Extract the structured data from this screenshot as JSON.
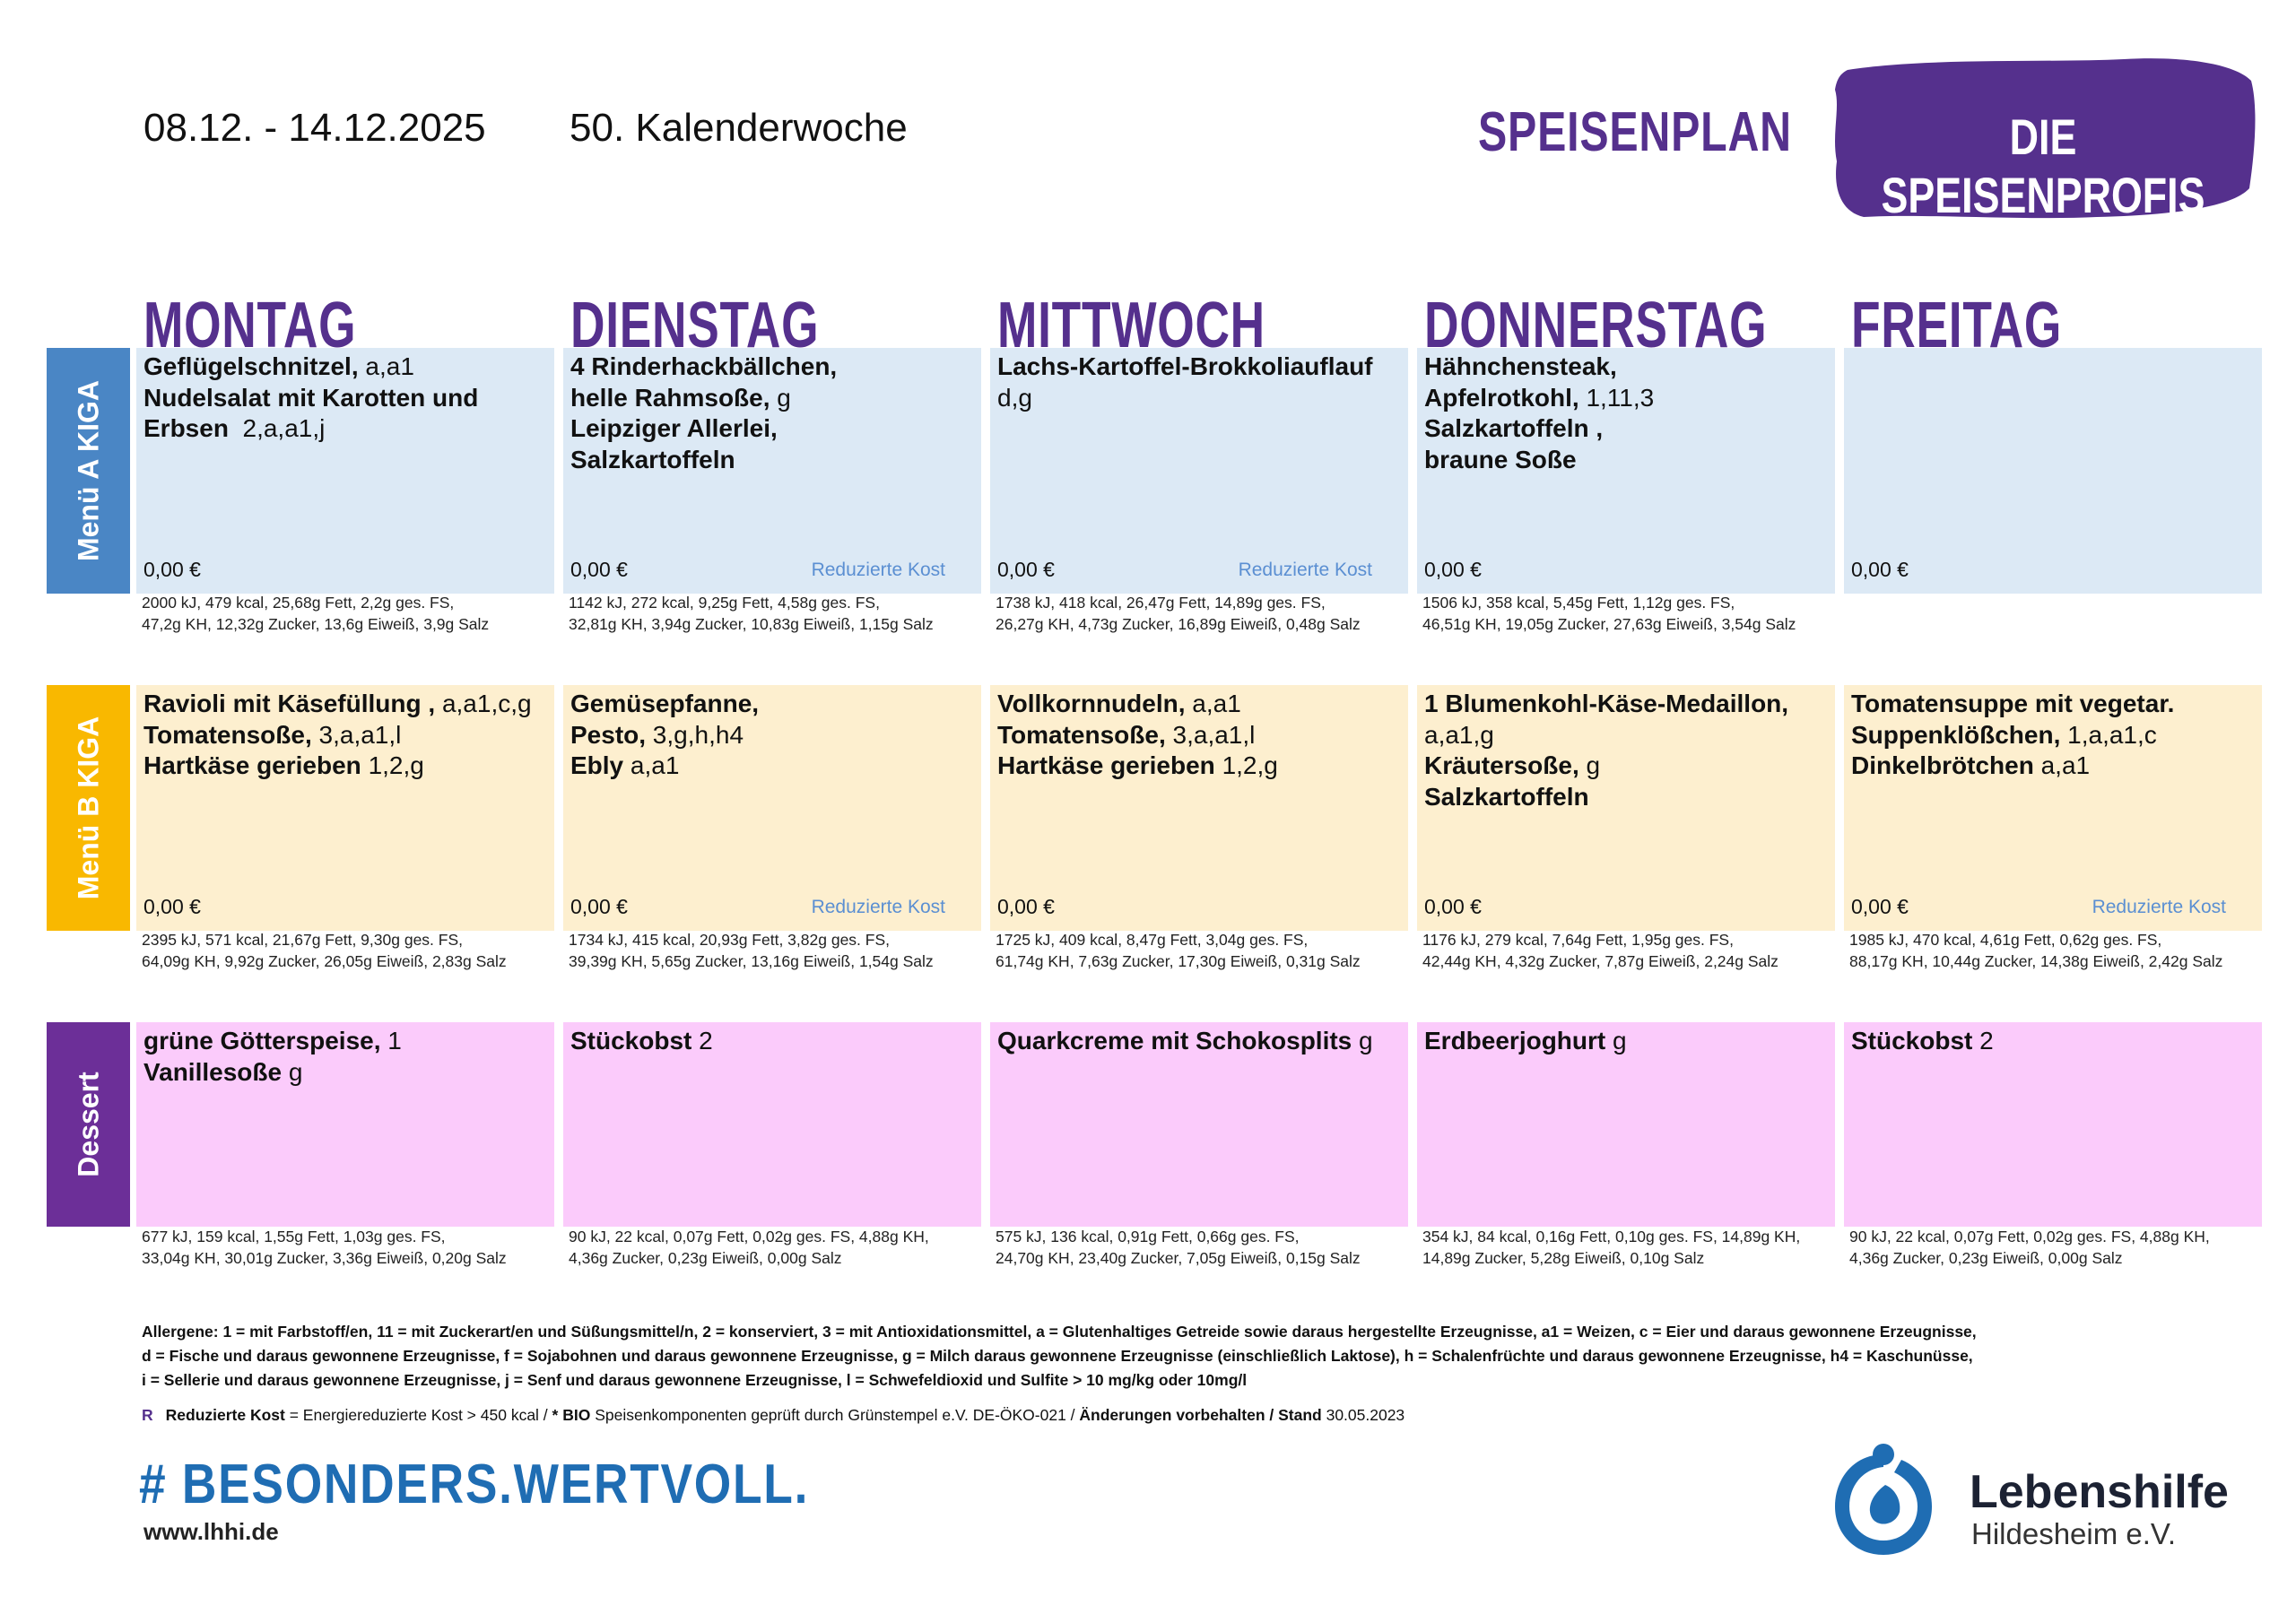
{
  "header": {
    "date_range": "08.12. - 14.12.2025",
    "week": "50. Kalenderwoche",
    "title": "SPEISENPLAN",
    "brand": "DIE SPEISENPROFIS"
  },
  "days": [
    "MONTAG",
    "DIENSTAG",
    "MITTWOCH",
    "DONNERSTAG",
    "FREITAG"
  ],
  "rows": [
    {
      "label": "Menü A KIGA",
      "color": "#4a86c5",
      "cell_color": "#dce9f5",
      "cells": [
        {
          "lines": [
            {
              "n": "Geflügelschnitzel,",
              "a": " a,a1"
            },
            {
              "n": "Nudelsalat mit Karotten und",
              "a": ""
            },
            {
              "n": "Erbsen",
              "a": "  2,a,a1,j"
            }
          ],
          "price": "0,00 €",
          "rk": "",
          "n1": "2000 kJ, 479 kcal, 25,68g Fett, 2,2g ges. FS,",
          "n2": "47,2g KH, 12,32g Zucker, 13,6g Eiweiß, 3,9g Salz"
        },
        {
          "lines": [
            {
              "n": "4 Rinderhackbällchen,",
              "a": ""
            },
            {
              "n": "helle Rahmsoße,",
              "a": " g"
            },
            {
              "n": "Leipziger Allerlei,",
              "a": ""
            },
            {
              "n": "Salzkartoffeln",
              "a": ""
            }
          ],
          "price": "0,00 €",
          "rk": "Reduzierte Kost",
          "n1": "1142 kJ, 272 kcal, 9,25g Fett, 4,58g ges. FS,",
          "n2": "32,81g KH, 3,94g Zucker, 10,83g Eiweiß, 1,15g Salz"
        },
        {
          "lines": [
            {
              "n": "Lachs-Kartoffel-Brokkoliauflauf",
              "a": ""
            },
            {
              "n": "",
              "a": "d,g"
            }
          ],
          "price": "0,00 €",
          "rk": "Reduzierte Kost",
          "n1": "1738 kJ, 418 kcal, 26,47g Fett, 14,89g ges. FS,",
          "n2": "26,27g KH, 4,73g Zucker, 16,89g Eiweiß, 0,48g Salz"
        },
        {
          "lines": [
            {
              "n": "Hähnchensteak,",
              "a": ""
            },
            {
              "n": "Apfelrotkohl,",
              "a": " 1,11,3"
            },
            {
              "n": "Salzkartoffeln ,",
              "a": ""
            },
            {
              "n": "braune Soße",
              "a": ""
            }
          ],
          "price": "0,00 €",
          "rk": "",
          "n1": "1506 kJ, 358 kcal, 5,45g Fett, 1,12g ges. FS,",
          "n2": "46,51g KH, 19,05g Zucker, 27,63g Eiweiß, 3,54g Salz"
        },
        {
          "lines": [],
          "price": "0,00 €",
          "rk": "",
          "n1": "",
          "n2": ""
        }
      ]
    },
    {
      "label": "Menü B KIGA",
      "color": "#f9b800",
      "cell_color": "#fdefcf",
      "cells": [
        {
          "lines": [
            {
              "n": "Ravioli mit Käsefüllung ,",
              "a": " a,a1,c,g"
            },
            {
              "n": "Tomatensoße,",
              "a": " 3,a,a1,l"
            },
            {
              "n": "Hartkäse gerieben",
              "a": " 1,2,g"
            }
          ],
          "price": "0,00 €",
          "rk": "",
          "n1": "2395 kJ, 571 kcal, 21,67g Fett, 9,30g ges. FS,",
          "n2": "64,09g KH, 9,92g Zucker, 26,05g Eiweiß, 2,83g Salz"
        },
        {
          "lines": [
            {
              "n": "Gemüsepfanne,",
              "a": ""
            },
            {
              "n": "Pesto,",
              "a": " 3,g,h,h4"
            },
            {
              "n": "Ebly",
              "a": " a,a1"
            }
          ],
          "price": "0,00 €",
          "rk": "Reduzierte Kost",
          "n1": "1734 kJ, 415 kcal, 20,93g Fett, 3,82g ges. FS,",
          "n2": "39,39g KH, 5,65g Zucker, 13,16g Eiweiß, 1,54g Salz"
        },
        {
          "lines": [
            {
              "n": "Vollkornnudeln,",
              "a": " a,a1"
            },
            {
              "n": "Tomatensoße,",
              "a": " 3,a,a1,l"
            },
            {
              "n": "Hartkäse gerieben",
              "a": " 1,2,g"
            }
          ],
          "price": "0,00 €",
          "rk": "",
          "n1": "1725 kJ, 409 kcal, 8,47g Fett, 3,04g ges. FS,",
          "n2": "61,74g KH, 7,63g Zucker, 17,30g Eiweiß, 0,31g Salz"
        },
        {
          "lines": [
            {
              "n": "1 Blumenkohl-Käse-Medaillon,",
              "a": ""
            },
            {
              "n": "",
              "a": "a,a1,g"
            },
            {
              "n": "Kräutersoße,",
              "a": " g"
            },
            {
              "n": "Salzkartoffeln",
              "a": ""
            }
          ],
          "price": "0,00 €",
          "rk": "",
          "n1": "1176 kJ, 279 kcal, 7,64g Fett, 1,95g ges. FS,",
          "n2": "42,44g KH, 4,32g Zucker, 7,87g Eiweiß, 2,24g Salz"
        },
        {
          "lines": [
            {
              "n": "Tomatensuppe mit vegetar.",
              "a": ""
            },
            {
              "n": "Suppenklößchen,",
              "a": " 1,a,a1,c"
            },
            {
              "n": "Dinkelbrötchen",
              "a": " a,a1"
            }
          ],
          "price": "0,00 €",
          "rk": "Reduzierte Kost",
          "n1": "1985 kJ, 470 kcal, 4,61g Fett, 0,62g ges. FS,",
          "n2": "88,17g KH, 10,44g Zucker, 14,38g Eiweiß, 2,42g Salz"
        }
      ]
    },
    {
      "label": "Dessert",
      "color": "#6c2f98",
      "cell_color": "#fbcbfb",
      "cells": [
        {
          "lines": [
            {
              "n": "grüne Götterspeise,",
              "a": " 1"
            },
            {
              "n": "Vanillesoße",
              "a": " g"
            }
          ],
          "price": "",
          "rk": "",
          "n1": "677 kJ, 159 kcal, 1,55g Fett, 1,03g ges. FS,",
          "n2": "33,04g KH, 30,01g Zucker, 3,36g Eiweiß, 0,20g Salz"
        },
        {
          "lines": [
            {
              "n": "Stückobst",
              "a": " 2"
            }
          ],
          "price": "",
          "rk": "",
          "n1": "90 kJ, 22 kcal, 0,07g Fett, 0,02g ges. FS, 4,88g KH,",
          "n2": "4,36g Zucker, 0,23g Eiweiß, 0,00g Salz"
        },
        {
          "lines": [
            {
              "n": "Quarkcreme mit Schokosplits",
              "a": " g"
            }
          ],
          "price": "",
          "rk": "",
          "n1": "575 kJ, 136 kcal, 0,91g Fett, 0,66g ges. FS,",
          "n2": "24,70g KH, 23,40g Zucker, 7,05g Eiweiß, 0,15g Salz"
        },
        {
          "lines": [
            {
              "n": "Erdbeerjoghurt",
              "a": " g"
            }
          ],
          "price": "",
          "rk": "",
          "n1": "354 kJ, 84 kcal, 0,16g Fett, 0,10g ges. FS, 14,89g KH,",
          "n2": "14,89g Zucker, 5,28g Eiweiß, 0,10g Salz"
        },
        {
          "lines": [
            {
              "n": "Stückobst",
              "a": " 2"
            }
          ],
          "price": "",
          "rk": "",
          "n1": "90 kJ, 22 kcal, 0,07g Fett, 0,02g ges. FS, 4,88g KH,",
          "n2": "4,36g Zucker, 0,23g Eiweiß, 0,00g Salz"
        }
      ]
    }
  ],
  "allergens": [
    "Allergene: 1 = mit Farbstoff/en, 11 = mit Zuckerart/en und Süßungsmittel/n, 2 = konserviert, 3 = mit Antioxidationsmittel, a = Glutenhaltiges Getreide sowie daraus hergestellte Erzeugnisse, a1 = Weizen, c = Eier und daraus gewonnene Erzeugnisse,",
    "d = Fische und daraus gewonnene Erzeugnisse, f = Sojabohnen und daraus gewonnene Erzeugnisse, g = Milch daraus gewonnene Erzeugnisse (einschließlich Laktose), h = Schalenfrüchte und daraus gewonnene Erzeugnisse, h4 = Kaschunüsse,",
    "i = Sellerie und daraus gewonnene Erzeugnisse, j = Senf und daraus gewonnene Erzeugnisse, l = Schwefeldioxid und Sulfite > 10 mg/kg oder 10mg/l"
  ],
  "note": {
    "marker": "R",
    "rk_label": "Reduzierte Kost",
    "rk_text": " = Energiereduzierte Kost > 450 kcal / ",
    "bio_label": "* BIO",
    "bio_text": " Speisenkomponenten geprüft durch Grünstempel e.V. DE-ÖKO-021 / ",
    "changes_label": "Änderungen vorbehalten / Stand",
    "stand_date": " 30.05.2023"
  },
  "footer": {
    "hashtag": "# BESONDERS.WERTVOLL.",
    "url": "www.lhhi.de",
    "org_name": "Lebenshilfe",
    "org_city": "Hildesheim e.V."
  },
  "colors": {
    "purple": "#55308d",
    "blue_link": "#5b8fd2",
    "hashtag_blue": "#1f6db3"
  }
}
